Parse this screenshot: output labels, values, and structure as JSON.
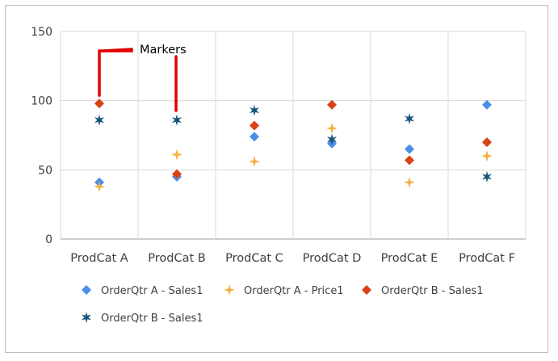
{
  "chart_data": {
    "type": "scatter",
    "categories": [
      "ProdCat A",
      "ProdCat B",
      "ProdCat C",
      "ProdCat D",
      "ProdCat E",
      "ProdCat F"
    ],
    "ylim": [
      0,
      150
    ],
    "yticks": [
      0,
      50,
      100,
      150
    ],
    "grid": true,
    "legend_position": "bottom",
    "series": [
      {
        "name": "OrderQtr A - Sales1",
        "marker": "diamond",
        "color": "#4a8fe8",
        "values": [
          41,
          45,
          74,
          69,
          65,
          97
        ]
      },
      {
        "name": "OrderQtr A - Price1",
        "marker": "star4",
        "color": "#f4b03e",
        "values": [
          38,
          61,
          56,
          80,
          41,
          60
        ]
      },
      {
        "name": "OrderQtr B - Sales1",
        "marker": "diamond",
        "color": "#d84315",
        "values": [
          98,
          47,
          82,
          97,
          57,
          70
        ]
      },
      {
        "name": "OrderQtr B - Sales1",
        "marker": "star6",
        "color": "#17567a",
        "values": [
          86,
          86,
          93,
          72,
          87,
          45
        ]
      }
    ],
    "annotation": {
      "text": "Markers",
      "color": "#e00000"
    }
  }
}
